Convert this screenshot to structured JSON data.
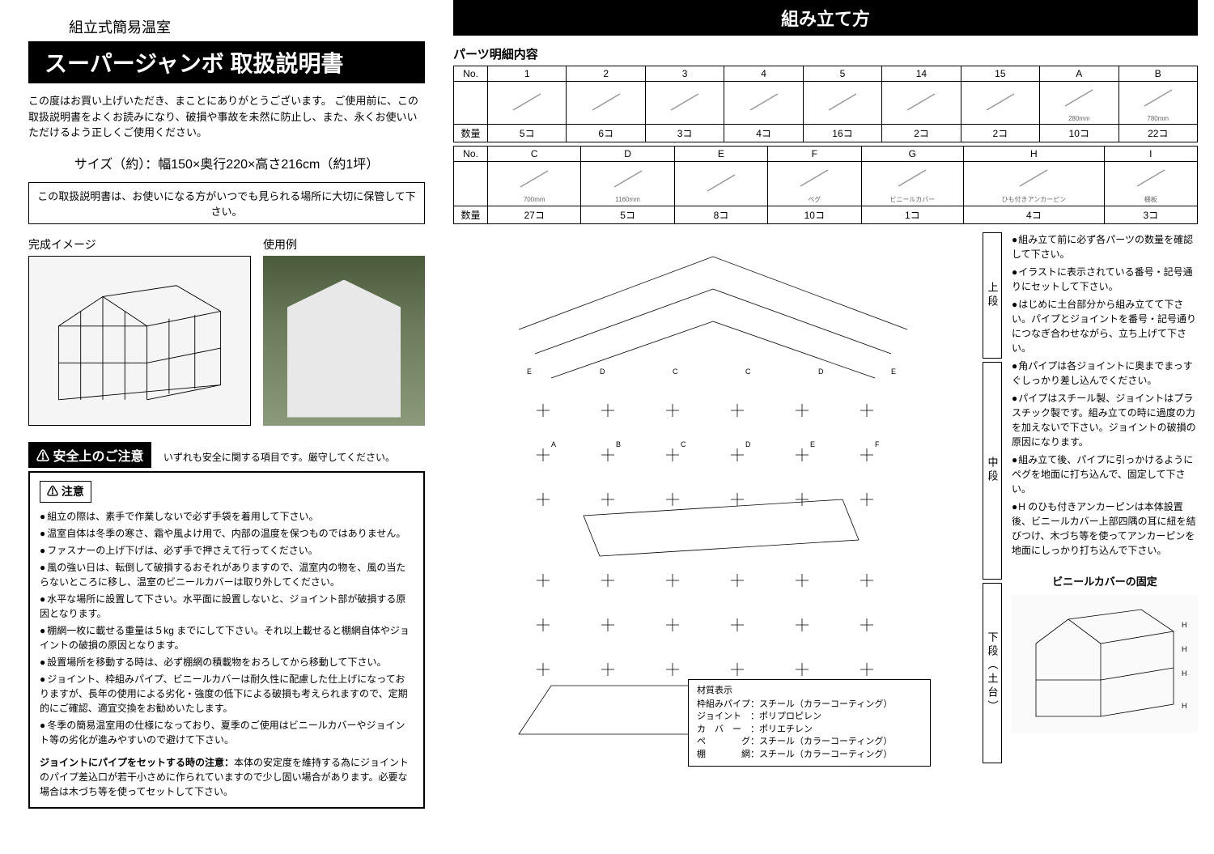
{
  "left": {
    "product_type": "組立式簡易温室",
    "title": "スーパージャンボ 取扱説明書",
    "intro": "この度はお買い上げいただき、まことにありがとうございます。\nご使用前に、この取扱説明書をよくお読みになり、破損や事故を未然に防止し、また、永くお使いいただけるよう正しくご使用ください。",
    "size": "サイズ（約）：幅150×奥行220×高さ216cm（約1坪）",
    "storage_notice": "この取扱説明書は、お使いになる方がいつでも見られる場所に大切に保管して下さい。",
    "img1_label": "完成イメージ",
    "img2_label": "使用例",
    "safety_header": "⚠ 安全上のご注意",
    "safety_sub": "いずれも安全に関する項目です。厳守してください。",
    "caution_title": "⚠ 注意",
    "cautions": [
      "組立の際は、素手で作業しないで必ず手袋を着用して下さい。",
      "温室自体は冬季の寒さ、霜や風よけ用で、内部の温度を保つものではありません。",
      "ファスナーの上げ下げは、必ず手で押さえて行ってください。",
      "風の強い日は、転倒して破損するおそれがありますので、温室内の物を、風の当たらないところに移し、温室のビニールカバーは取り外してください。",
      "水平な場所に設置して下さい。水平面に設置しないと、ジョイント部が破損する原因となります。",
      "棚網一枚に載せる重量は５kg までにして下さい。それ以上載せると棚網自体やジョイントの破損の原因となります。",
      "設置場所を移動する時は、必ず棚網の積載物をおろしてから移動して下さい。",
      "ジョイント、枠組みパイプ、ビニールカバーは耐久性に配慮した仕上げになっておりますが、長年の使用による劣化・強度の低下による破損も考えられますので、定期的にご確認、適宜交換をお勧めいたします。",
      "冬季の簡易温室用の仕様になっており、夏季のご使用はビニールカバーやジョイント等の劣化が進みやすいので避けて下さい。"
    ],
    "joint_note_title": "ジョイントにパイプをセットする時の注意：",
    "joint_note_body": "本体の安定度を維持する為にジョイントのパイプ差込口が若干小さめに作られていますので少し固い場合があります。必要な場合は木づち等を使ってセットして下さい。"
  },
  "right": {
    "assembly_header": "組み立て方",
    "parts_title": "パーツ明細内容",
    "row1": {
      "headers": [
        "No.",
        "1",
        "2",
        "3",
        "4",
        "5",
        "14",
        "15",
        "A",
        "B"
      ],
      "dims": [
        "",
        "",
        "",
        "",
        "",
        "",
        "",
        "",
        "280mm",
        "780mm"
      ],
      "qty_label": "数量",
      "qty": [
        "5コ",
        "6コ",
        "3コ",
        "4コ",
        "16コ",
        "2コ",
        "2コ",
        "10コ",
        "22コ"
      ]
    },
    "row2": {
      "headers": [
        "No.",
        "C",
        "D",
        "E",
        "F",
        "G",
        "H",
        "I"
      ],
      "dims": [
        "",
        "700mm",
        "1160mm",
        "",
        "ペグ",
        "ビニールカバー",
        "ひも付きアンカーピン",
        "棚板"
      ],
      "qty_label": "数量",
      "qty": [
        "27コ",
        "5コ",
        "8コ",
        "10コ",
        "1コ",
        "4コ",
        "3コ"
      ]
    },
    "sections": [
      "上段",
      "中段",
      "下段（土台）"
    ],
    "instructions": [
      "組み立て前に必ず各パーツの数量を確認して下さい。",
      "イラストに表示されている番号・記号通りにセットして下さい。",
      "はじめに土台部分から組み立てて下さい。パイプとジョイントを番号・記号通りにつなぎ合わせながら、立ち上げて下さい。",
      "角パイプは各ジョイントに奥までまっすぐしっかり差し込んでください。",
      "パイプはスチール製、ジョイントはプラスチック製です。組み立ての時に過度の力を加えないで下さい。ジョイントの破損の原因になります。",
      "組み立て後、パイプに引っかけるようにペグを地面に打ち込んで、固定して下さい。",
      "H のひも付きアンカーピンは本体設置後、ビニールカバー上部四隅の耳に紐を結びつけ、木づち等を使ってアンカーピンを地面にしっかり打ち込んで下さい。"
    ],
    "cover_fix_title": "ビニールカバーの固定",
    "materials": {
      "title": "材質表示",
      "lines": [
        "枠組みパイプ：スチール（カラーコーティング）",
        "ジョイント　：ポリプロピレン",
        "カ　バ　ー　：ポリエチレン",
        "ペ　　　　グ：スチール（カラーコーティング）",
        "棚　　　　網：スチール（カラーコーティング）"
      ]
    }
  },
  "colors": {
    "bg": "#ffffff",
    "text": "#000000",
    "header_bg": "#000000",
    "header_text": "#ffffff",
    "border": "#000000"
  }
}
